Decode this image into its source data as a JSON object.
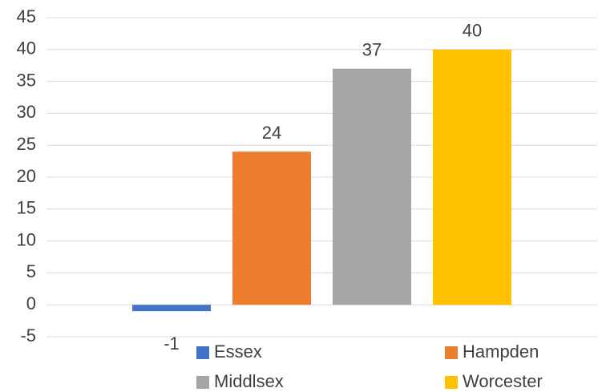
{
  "chart_data": {
    "type": "bar",
    "categories": [
      null
    ],
    "series": [
      {
        "name": "Essex",
        "color": "#4472c4",
        "values": [
          -1
        ]
      },
      {
        "name": "Hampden",
        "color": "#ed7d31",
        "values": [
          24
        ]
      },
      {
        "name": "Middlsex",
        "color": "#a5a5a5",
        "values": [
          37
        ]
      },
      {
        "name": "Worcester",
        "color": "#ffc000",
        "values": [
          40
        ]
      }
    ],
    "ylim": [
      -5,
      45
    ],
    "yticks": [
      -5,
      0,
      5,
      10,
      15,
      20,
      25,
      30,
      35,
      40,
      45
    ],
    "grid": true,
    "legend": "bottom",
    "data_labels": true
  }
}
